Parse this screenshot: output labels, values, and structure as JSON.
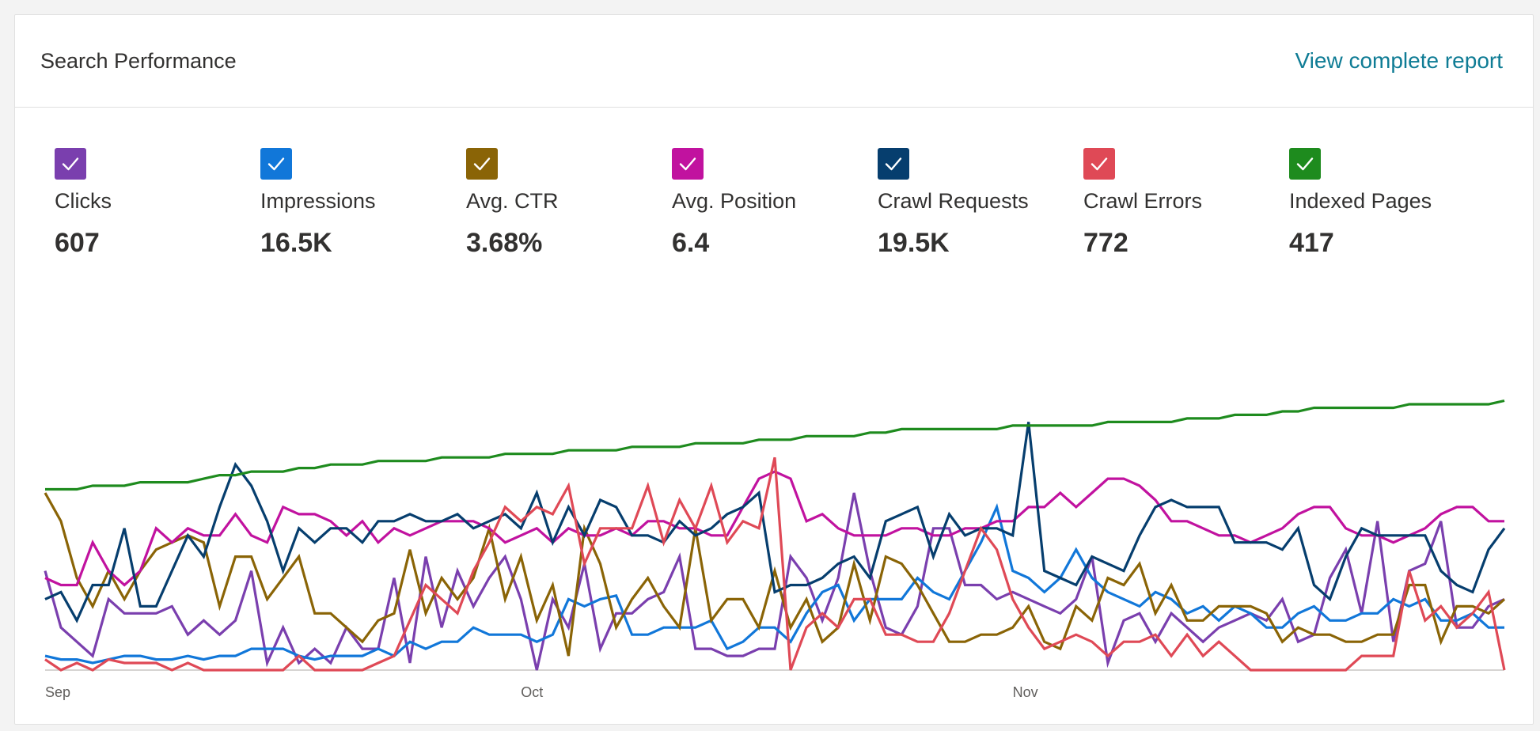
{
  "header": {
    "title": "Search Performance",
    "report_link": "View complete report"
  },
  "colors": {
    "link": "#0f7c95",
    "baseline": "#c8c6c4"
  },
  "metrics": [
    {
      "id": "clicks",
      "label": "Clicks",
      "value": "607",
      "color": "#7a3fae",
      "checked": true
    },
    {
      "id": "impressions",
      "label": "Impressions",
      "value": "16.5K",
      "color": "#1177d9",
      "checked": true
    },
    {
      "id": "avg-ctr",
      "label": "Avg. CTR",
      "value": "3.68%",
      "color": "#8a6406",
      "checked": true
    },
    {
      "id": "avg-position",
      "label": "Avg. Position",
      "value": "6.4",
      "color": "#c1129f",
      "checked": true
    },
    {
      "id": "crawl-requests",
      "label": "Crawl Requests",
      "value": "19.5K",
      "color": "#063e6e",
      "checked": true
    },
    {
      "id": "crawl-errors",
      "label": "Crawl Errors",
      "value": "772",
      "color": "#df4956",
      "checked": true
    },
    {
      "id": "indexed-pages",
      "label": "Indexed Pages",
      "value": "417",
      "color": "#1e8b1e",
      "checked": true
    }
  ],
  "chart_data": {
    "type": "line",
    "xlabel": "",
    "ylabel": "",
    "x_ticks": [
      {
        "label": "Sep",
        "index": 0
      },
      {
        "label": "Oct",
        "index": 30
      },
      {
        "label": "Nov",
        "index": 61
      }
    ],
    "ylim": [
      0,
      100
    ],
    "grid": false,
    "legend": "top (metric checkboxes)",
    "series": [
      {
        "name": "Clicks",
        "color": "#7a3fae",
        "values": [
          28,
          12,
          8,
          4,
          20,
          16,
          16,
          16,
          18,
          10,
          14,
          10,
          14,
          28,
          2,
          12,
          2,
          6,
          2,
          12,
          6,
          6,
          26,
          2,
          32,
          12,
          28,
          18,
          26,
          32,
          20,
          0,
          20,
          12,
          30,
          6,
          16,
          16,
          20,
          22,
          32,
          6,
          6,
          4,
          4,
          6,
          6,
          32,
          26,
          14,
          26,
          50,
          28,
          12,
          10,
          18,
          40,
          40,
          24,
          24,
          20,
          22,
          20,
          18,
          16,
          20,
          32,
          2,
          14,
          16,
          8,
          16,
          12,
          8,
          12,
          14,
          16,
          14,
          20,
          8,
          10,
          26,
          34,
          16,
          42,
          8,
          28,
          30,
          42,
          12,
          12,
          18,
          20
        ]
      },
      {
        "name": "Impressions",
        "color": "#1177d9",
        "values": [
          4,
          3,
          3,
          2,
          3,
          4,
          4,
          3,
          3,
          4,
          3,
          4,
          4,
          6,
          6,
          6,
          4,
          3,
          4,
          4,
          4,
          6,
          4,
          8,
          6,
          8,
          8,
          12,
          10,
          10,
          10,
          8,
          10,
          20,
          18,
          20,
          21,
          10,
          10,
          12,
          12,
          12,
          14,
          6,
          8,
          12,
          12,
          8,
          16,
          22,
          24,
          14,
          20,
          20,
          20,
          26,
          22,
          20,
          28,
          36,
          46,
          28,
          26,
          22,
          26,
          34,
          26,
          22,
          20,
          18,
          22,
          20,
          16,
          18,
          14,
          18,
          16,
          12,
          12,
          16,
          18,
          14,
          14,
          16,
          16,
          20,
          18,
          20,
          14,
          14,
          16,
          12,
          12
        ]
      },
      {
        "name": "Avg. CTR",
        "color": "#8a6406",
        "values": [
          50,
          42,
          26,
          18,
          28,
          20,
          28,
          34,
          36,
          38,
          36,
          18,
          32,
          32,
          20,
          26,
          32,
          16,
          16,
          12,
          8,
          14,
          16,
          34,
          16,
          26,
          20,
          26,
          40,
          20,
          32,
          14,
          24,
          4,
          40,
          30,
          12,
          20,
          26,
          18,
          12,
          40,
          14,
          20,
          20,
          12,
          28,
          12,
          20,
          8,
          12,
          30,
          14,
          32,
          30,
          24,
          16,
          8,
          8,
          10,
          10,
          12,
          18,
          8,
          6,
          18,
          14,
          26,
          24,
          30,
          16,
          24,
          14,
          14,
          18,
          18,
          18,
          16,
          8,
          12,
          10,
          10,
          8,
          8,
          10,
          10,
          24,
          24,
          8,
          18,
          18,
          16,
          20
        ]
      },
      {
        "name": "Avg. Position",
        "color": "#c1129f",
        "values": [
          26,
          24,
          24,
          36,
          28,
          24,
          28,
          40,
          36,
          40,
          38,
          38,
          44,
          38,
          36,
          46,
          44,
          44,
          42,
          38,
          42,
          36,
          40,
          38,
          40,
          42,
          42,
          42,
          40,
          36,
          38,
          40,
          36,
          40,
          38,
          38,
          40,
          38,
          42,
          42,
          40,
          40,
          38,
          38,
          46,
          54,
          56,
          54,
          42,
          44,
          40,
          38,
          38,
          38,
          40,
          40,
          38,
          38,
          40,
          40,
          42,
          42,
          46,
          46,
          50,
          46,
          50,
          54,
          54,
          52,
          48,
          42,
          42,
          40,
          38,
          38,
          36,
          38,
          40,
          44,
          46,
          46,
          40,
          38,
          38,
          36,
          38,
          40,
          44,
          46,
          46,
          42,
          42
        ]
      },
      {
        "name": "Crawl Requests",
        "color": "#063e6e",
        "values": [
          20,
          22,
          14,
          24,
          24,
          40,
          18,
          18,
          28,
          38,
          32,
          46,
          58,
          52,
          42,
          28,
          40,
          36,
          40,
          40,
          36,
          42,
          42,
          44,
          42,
          42,
          44,
          40,
          42,
          44,
          40,
          50,
          36,
          46,
          38,
          48,
          46,
          38,
          38,
          36,
          42,
          38,
          40,
          44,
          46,
          50,
          22,
          24,
          24,
          26,
          30,
          32,
          26,
          42,
          44,
          46,
          32,
          44,
          38,
          40,
          40,
          38,
          70,
          28,
          26,
          24,
          32,
          30,
          28,
          38,
          46,
          48,
          46,
          46,
          46,
          36,
          36,
          36,
          34,
          40,
          24,
          20,
          32,
          40,
          38,
          38,
          38,
          38,
          28,
          24,
          22,
          34,
          40
        ]
      },
      {
        "name": "Crawl Errors",
        "color": "#df4956",
        "values": [
          3,
          0,
          2,
          0,
          3,
          2,
          2,
          2,
          0,
          2,
          0,
          0,
          0,
          0,
          0,
          0,
          4,
          0,
          0,
          0,
          0,
          2,
          4,
          14,
          24,
          20,
          16,
          28,
          36,
          46,
          42,
          46,
          44,
          52,
          30,
          40,
          40,
          40,
          52,
          36,
          48,
          40,
          52,
          36,
          42,
          40,
          60,
          0,
          12,
          16,
          12,
          20,
          20,
          10,
          10,
          8,
          8,
          16,
          28,
          40,
          34,
          20,
          12,
          6,
          8,
          10,
          8,
          4,
          8,
          8,
          10,
          4,
          10,
          4,
          8,
          4,
          0,
          0,
          0,
          0,
          0,
          0,
          0,
          4,
          4,
          4,
          28,
          14,
          18,
          12,
          16,
          22,
          0
        ]
      },
      {
        "name": "Indexed Pages",
        "color": "#1e8b1e",
        "values": [
          51,
          51,
          51,
          52,
          52,
          52,
          53,
          53,
          53,
          53,
          54,
          55,
          55,
          56,
          56,
          56,
          57,
          57,
          58,
          58,
          58,
          59,
          59,
          59,
          59,
          60,
          60,
          60,
          60,
          61,
          61,
          61,
          61,
          62,
          62,
          62,
          62,
          63,
          63,
          63,
          63,
          64,
          64,
          64,
          64,
          65,
          65,
          65,
          66,
          66,
          66,
          66,
          67,
          67,
          68,
          68,
          68,
          68,
          68,
          68,
          68,
          69,
          69,
          69,
          69,
          69,
          69,
          70,
          70,
          70,
          70,
          70,
          71,
          71,
          71,
          72,
          72,
          72,
          73,
          73,
          74,
          74,
          74,
          74,
          74,
          74,
          75,
          75,
          75,
          75,
          75,
          75,
          76
        ]
      }
    ]
  }
}
